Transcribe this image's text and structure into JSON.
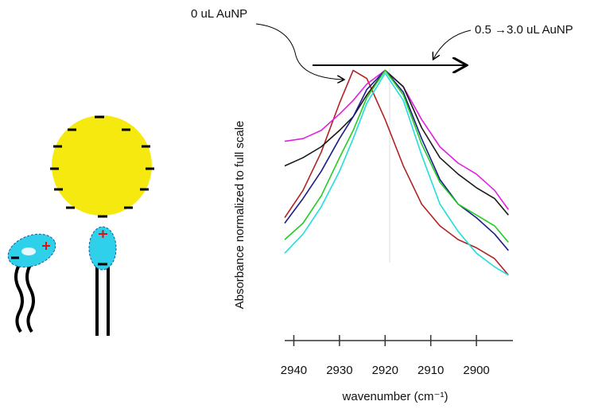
{
  "chart_data": {
    "type": "line",
    "x_label": "wavenumber (cm⁻¹)",
    "y_label": "Absorbance normalized to full scale",
    "annotations": [
      "0 uL AuNP",
      "0.5 →3.0 uL AuNP"
    ],
    "x": [
      2942,
      2938,
      2934,
      2930,
      2927,
      2924,
      2920,
      2916,
      2912,
      2908,
      2904,
      2900,
      2896,
      2893
    ],
    "xlim": [
      2942,
      2892
    ],
    "xticks": [
      2940,
      2930,
      2920,
      2910,
      2900
    ],
    "ylim": [
      0,
      1
    ],
    "series": [
      {
        "color": "#b22222",
        "values": [
          0.45,
          0.55,
          0.69,
          0.87,
          0.99,
          0.96,
          0.81,
          0.64,
          0.5,
          0.42,
          0.37,
          0.34,
          0.3,
          0.24
        ]
      },
      {
        "color": "#e020e0",
        "values": [
          0.73,
          0.74,
          0.77,
          0.83,
          0.88,
          0.94,
          0.99,
          0.93,
          0.81,
          0.71,
          0.65,
          0.61,
          0.55,
          0.48
        ]
      },
      {
        "color": "#1a1a1a",
        "values": [
          0.64,
          0.67,
          0.71,
          0.77,
          0.82,
          0.9,
          0.99,
          0.93,
          0.78,
          0.67,
          0.61,
          0.56,
          0.52,
          0.46
        ]
      },
      {
        "color": "#1c1c8c",
        "values": [
          0.43,
          0.52,
          0.62,
          0.74,
          0.82,
          0.92,
          0.99,
          0.91,
          0.74,
          0.59,
          0.5,
          0.45,
          0.39,
          0.33
        ]
      },
      {
        "color": "#22cc22",
        "values": [
          0.37,
          0.43,
          0.53,
          0.67,
          0.77,
          0.89,
          0.99,
          0.9,
          0.72,
          0.58,
          0.5,
          0.46,
          0.42,
          0.36
        ]
      },
      {
        "color": "#22dddd",
        "values": [
          0.32,
          0.39,
          0.49,
          0.62,
          0.74,
          0.87,
          0.98,
          0.88,
          0.68,
          0.5,
          0.4,
          0.32,
          0.27,
          0.24
        ]
      }
    ]
  }
}
